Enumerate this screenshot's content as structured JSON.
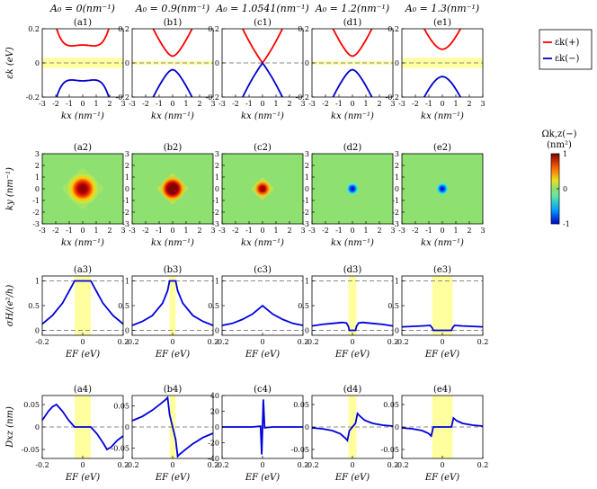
{
  "headers": [
    "A₀ = 0(nm⁻¹)",
    "A₀ = 0.9(nm⁻¹)",
    "A₀ = 1.0541(nm⁻¹)",
    "A₀ = 1.2(nm⁻¹)",
    "A₀ = 1.3(nm⁻¹)"
  ],
  "panel_labels": [
    [
      "(a1)",
      "(b1)",
      "(c1)",
      "(d1)",
      "(e1)"
    ],
    [
      "(a2)",
      "(b2)",
      "(c2)",
      "(d2)",
      "(e2)"
    ],
    [
      "(a3)",
      "(b3)",
      "(c3)",
      "(d3)",
      "(e3)"
    ],
    [
      "(a4)",
      "(b4)",
      "(c4)",
      "(d4)",
      "(e4)"
    ]
  ],
  "axis_labels": {
    "row1_y": "εk (eV)",
    "row1_x": "kx (nm⁻¹)",
    "row2_y": "ky (nm⁻¹)",
    "row2_x": "kx (nm⁻¹)",
    "row3_y": "σH/(e²/h)",
    "row3_x": "EF (eV)",
    "row4_y": "Dxz (nm)",
    "row4_x": "EF (eV)"
  },
  "legend": [
    "εk(+)",
    "εk(−)"
  ],
  "colorbar": {
    "title": "Ωk,z(−)",
    "unit": "(nm²)",
    "ticks": [
      "1",
      "0",
      "-1"
    ]
  },
  "colors": {
    "upper_band": "#ff0000",
    "lower_band": "#0000cc",
    "curve": "#0000dd",
    "shade": "#ffff9f",
    "dash": "#888888"
  },
  "chart_data": {
    "type": "line",
    "row1": {
      "xlim": [
        -3,
        3
      ],
      "ylim": [
        -0.2,
        0.2
      ],
      "xticks": [
        "-3",
        "-2",
        "-1",
        "0",
        "1",
        "2",
        "3"
      ],
      "yticks": [
        "0.2",
        "0",
        "-0.2"
      ],
      "band_half_gap": [
        0.105,
        0.04,
        0.0,
        0.04,
        0.08
      ],
      "shaded_energy_window": [
        [
          -0.03,
          0.03
        ],
        [
          -0.01,
          0.01
        ],
        null,
        [
          -0.01,
          0.01
        ],
        [
          -0.03,
          0.03
        ]
      ]
    },
    "row2": {
      "xlim": [
        -3,
        3
      ],
      "ylim": [
        -3,
        3
      ],
      "xticks": [
        "-3",
        "-2",
        "-1",
        "0",
        "1",
        "2",
        "3"
      ],
      "yticks": [
        "3",
        "2",
        "1",
        "0",
        "-1",
        "-2",
        "-3"
      ],
      "colorbar_range": [
        -1,
        1
      ]
    },
    "row3": {
      "xlim": [
        -0.2,
        0.2
      ],
      "ylim": [
        -0.1,
        1.1
      ],
      "xticks": [
        "-0.2",
        "0",
        "0.2"
      ],
      "yticks": [
        "1",
        "0.5",
        "0"
      ],
      "reference_levels": [
        0,
        1
      ],
      "shaded_window": [
        [
          -0.04,
          0.04
        ],
        [
          -0.015,
          0.015
        ],
        null,
        [
          -0.02,
          0.02
        ],
        [
          -0.05,
          0.05
        ]
      ],
      "series": [
        {
          "x": [
            -0.2,
            -0.15,
            -0.1,
            -0.06,
            -0.04,
            0,
            0.04,
            0.06,
            0.1,
            0.15,
            0.2
          ],
          "y": [
            0.13,
            0.3,
            0.55,
            0.85,
            1,
            1,
            1,
            0.85,
            0.55,
            0.3,
            0.13
          ]
        },
        {
          "x": [
            -0.2,
            -0.15,
            -0.1,
            -0.05,
            -0.025,
            -0.015,
            0,
            0.015,
            0.025,
            0.05,
            0.1,
            0.15,
            0.2
          ],
          "y": [
            0.1,
            0.18,
            0.3,
            0.55,
            0.8,
            1,
            1,
            1,
            0.8,
            0.55,
            0.3,
            0.18,
            0.1
          ]
        },
        {
          "x": [
            -0.2,
            -0.15,
            -0.1,
            -0.05,
            0,
            0.05,
            0.1,
            0.15,
            0.2
          ],
          "y": [
            0.1,
            0.14,
            0.22,
            0.33,
            0.5,
            0.33,
            0.22,
            0.14,
            0.1
          ]
        },
        {
          "x": [
            -0.2,
            -0.15,
            -0.1,
            -0.05,
            -0.03,
            -0.02,
            -0.015,
            0,
            0.015,
            0.02,
            0.03,
            0.05,
            0.1,
            0.15,
            0.2
          ],
          "y": [
            0.09,
            0.12,
            0.14,
            0.16,
            0.15,
            0.08,
            0,
            0,
            0,
            0.08,
            0.15,
            0.16,
            0.14,
            0.12,
            0.09
          ]
        },
        {
          "x": [
            -0.2,
            -0.15,
            -0.1,
            -0.06,
            -0.05,
            -0.045,
            0,
            0.045,
            0.05,
            0.06,
            0.1,
            0.15,
            0.2
          ],
          "y": [
            0.07,
            0.08,
            0.09,
            0.1,
            0.05,
            0,
            0,
            0,
            0.05,
            0.1,
            0.09,
            0.08,
            0.07
          ]
        }
      ]
    },
    "row4": {
      "xlim": [
        -0.2,
        0.2
      ],
      "xticks": [
        "-0.2",
        "0",
        "0.2"
      ],
      "ylims": [
        [
          -0.07,
          0.07
        ],
        [
          -0.075,
          0.075
        ],
        [
          -40,
          40
        ],
        [
          -0.07,
          0.07
        ],
        [
          -0.07,
          0.07
        ]
      ],
      "yticks": [
        [
          "0.05",
          "0",
          "-0.05"
        ],
        [
          "0.05",
          "0",
          "-0.05"
        ],
        [
          "40",
          "20",
          "0",
          "-20",
          "-40"
        ],
        [
          "0.05",
          "0",
          "-0.05"
        ],
        [
          "0.05",
          "0",
          "-0.05"
        ]
      ],
      "shaded_window": [
        [
          -0.04,
          0.04
        ],
        [
          -0.015,
          0.015
        ],
        null,
        [
          -0.02,
          0.02
        ],
        [
          -0.05,
          0.05
        ]
      ],
      "series": [
        {
          "x": [
            -0.2,
            -0.17,
            -0.15,
            -0.13,
            -0.1,
            -0.07,
            -0.04,
            0,
            0.04,
            0.07,
            0.1,
            0.12,
            0.14,
            0.17,
            0.2
          ],
          "y": [
            0.015,
            0.035,
            0.045,
            0.05,
            0.035,
            0.015,
            0,
            0,
            0,
            -0.015,
            -0.035,
            -0.05,
            -0.045,
            -0.03,
            -0.02
          ]
        },
        {
          "x": [
            -0.2,
            -0.15,
            -0.1,
            -0.06,
            -0.035,
            -0.025,
            -0.015,
            0,
            0.015,
            0.025,
            0.035,
            0.06,
            0.1,
            0.15,
            0.2
          ],
          "y": [
            0.015,
            0.025,
            0.04,
            0.055,
            0.065,
            0.07,
            0.03,
            0,
            -0.03,
            -0.07,
            -0.065,
            -0.055,
            -0.04,
            -0.025,
            -0.015
          ]
        },
        {
          "x": [
            -0.2,
            -0.05,
            -0.01,
            -0.004,
            0,
            0.004,
            0.01,
            0.05,
            0.2
          ],
          "y": [
            0,
            0,
            1,
            -35,
            0,
            35,
            -1,
            0,
            0
          ]
        },
        {
          "x": [
            -0.2,
            -0.15,
            -0.1,
            -0.06,
            -0.035,
            -0.025,
            -0.015,
            0,
            0.015,
            0.025,
            0.035,
            0.06,
            0.1,
            0.15,
            0.2
          ],
          "y": [
            -0.002,
            -0.004,
            -0.008,
            -0.015,
            -0.025,
            -0.03,
            -0.008,
            0,
            0.008,
            0.03,
            0.025,
            0.015,
            0.008,
            0.004,
            0.002
          ]
        },
        {
          "x": [
            -0.2,
            -0.15,
            -0.1,
            -0.07,
            -0.055,
            -0.05,
            -0.045,
            0,
            0.045,
            0.05,
            0.055,
            0.07,
            0.1,
            0.15,
            0.2
          ],
          "y": [
            -0.002,
            -0.004,
            -0.008,
            -0.014,
            -0.02,
            -0.01,
            0,
            0,
            0,
            0.01,
            0.02,
            0.014,
            0.008,
            0.004,
            0.002
          ]
        }
      ]
    }
  }
}
